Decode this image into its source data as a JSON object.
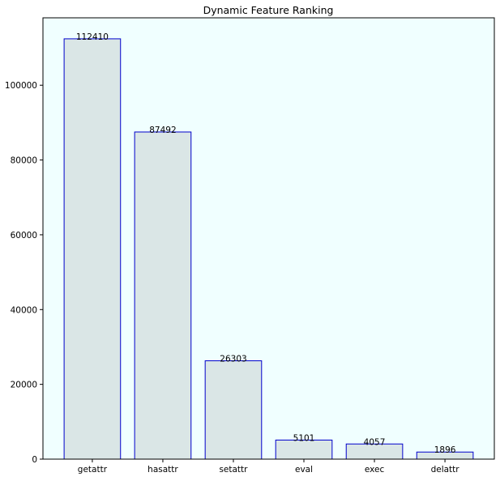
{
  "chart_data": {
    "type": "bar",
    "title": "Dynamic Feature Ranking",
    "xlabel": "",
    "ylabel": "",
    "categories": [
      "getattr",
      "hasattr",
      "setattr",
      "eval",
      "exec",
      "delattr"
    ],
    "values": [
      112410,
      87492,
      26303,
      5101,
      4057,
      1896
    ],
    "data_labels": [
      "112410",
      "87492",
      "26303",
      "5101",
      "4057",
      "1896"
    ],
    "ylim": [
      0,
      118025
    ],
    "yticks": [
      0,
      20000,
      40000,
      60000,
      80000,
      100000
    ],
    "ytick_labels": [
      "0",
      "20000",
      "40000",
      "60000",
      "80000",
      "100000"
    ],
    "grid": false,
    "legend": "none",
    "colors": {
      "plot_background": "#f0ffff",
      "bar_fill": "#dae6e6",
      "bar_edge": "#0000cc",
      "axes": "#000000"
    }
  }
}
